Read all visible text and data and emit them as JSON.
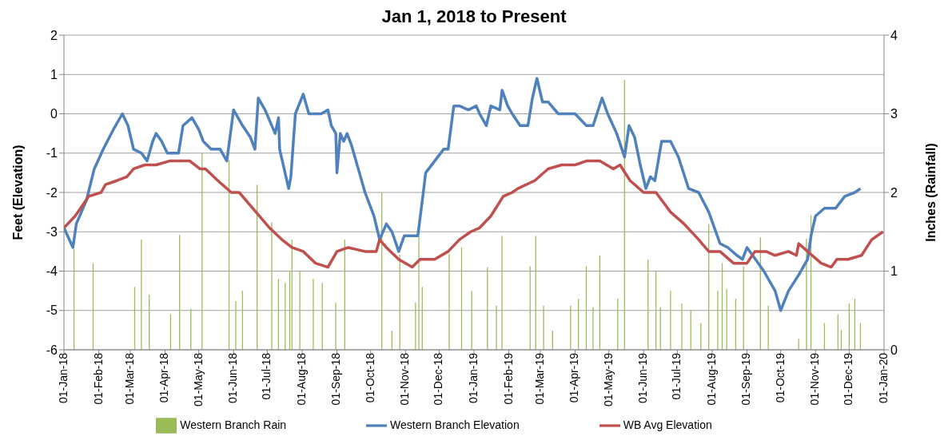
{
  "chart_data": {
    "type": "line",
    "title": "Jan 1, 2018 to Present",
    "ylabel": "Feet (Elevation)",
    "y2label": "Inches (Rainfall)",
    "xlim": [
      "2018-01-01",
      "2020-01-01"
    ],
    "xticks": [
      {
        "value": "2018-01-01",
        "label": "01-Jan-18"
      },
      {
        "value": "2018-02-01",
        "label": "01-Feb-18"
      },
      {
        "value": "2018-03-01",
        "label": "01-Mar-18"
      },
      {
        "value": "2018-04-01",
        "label": "01-Apr-18"
      },
      {
        "value": "2018-05-01",
        "label": "01-May-18"
      },
      {
        "value": "2018-06-01",
        "label": "01-Jun-18"
      },
      {
        "value": "2018-07-01",
        "label": "01-Jul-18"
      },
      {
        "value": "2018-08-01",
        "label": "01-Aug-18"
      },
      {
        "value": "2018-09-01",
        "label": "01-Sep-18"
      },
      {
        "value": "2018-10-01",
        "label": "01-Oct-18"
      },
      {
        "value": "2018-11-01",
        "label": "01-Nov-18"
      },
      {
        "value": "2018-12-01",
        "label": "01-Dec-18"
      },
      {
        "value": "2019-01-01",
        "label": "01-Jan-19"
      },
      {
        "value": "2019-02-01",
        "label": "01-Feb-19"
      },
      {
        "value": "2019-03-01",
        "label": "01-Mar-19"
      },
      {
        "value": "2019-04-01",
        "label": "01-Apr-19"
      },
      {
        "value": "2019-05-01",
        "label": "01-May-19"
      },
      {
        "value": "2019-06-01",
        "label": "01-Jun-19"
      },
      {
        "value": "2019-07-01",
        "label": "01-Jul-19"
      },
      {
        "value": "2019-08-01",
        "label": "01-Aug-19"
      },
      {
        "value": "2019-09-01",
        "label": "01-Sep-19"
      },
      {
        "value": "2019-10-01",
        "label": "01-Oct-19"
      },
      {
        "value": "2019-11-01",
        "label": "01-Nov-19"
      },
      {
        "value": "2019-12-01",
        "label": "01-Dec-19"
      },
      {
        "value": "2020-01-01",
        "label": "01-Jan-20"
      }
    ],
    "ylim": [
      -6,
      2
    ],
    "yticks": [
      -6,
      -5,
      -4,
      -3,
      -2,
      -1,
      0,
      1,
      2
    ],
    "y2lim": [
      0,
      4
    ],
    "y2ticks": [
      0,
      1,
      2,
      3,
      4
    ],
    "grid": "y",
    "legend": "bottom",
    "marker": "none",
    "series": [
      {
        "name": "Western Branch Rain",
        "type": "bar",
        "axis": "y2",
        "color": "#9bbb59",
        "x": [
          "2018-01-10",
          "2018-01-27",
          "2018-03-05",
          "2018-03-11",
          "2018-03-18",
          "2018-04-06",
          "2018-04-14",
          "2018-04-24",
          "2018-05-04",
          "2018-05-28",
          "2018-06-03",
          "2018-06-09",
          "2018-06-22",
          "2018-07-05",
          "2018-07-11",
          "2018-07-17",
          "2018-07-21",
          "2018-07-23",
          "2018-07-30",
          "2018-08-11",
          "2018-08-19",
          "2018-08-31",
          "2018-09-08",
          "2018-10-11",
          "2018-10-20",
          "2018-10-27",
          "2018-11-10",
          "2018-11-13",
          "2018-11-16",
          "2018-12-10",
          "2018-12-21",
          "2018-12-30",
          "2019-01-13",
          "2019-01-21",
          "2019-01-26",
          "2019-02-20",
          "2019-02-25",
          "2019-03-04",
          "2019-03-12",
          "2019-03-28",
          "2019-04-04",
          "2019-04-11",
          "2019-04-17",
          "2019-04-23",
          "2019-05-09",
          "2019-05-15",
          "2019-06-05",
          "2019-06-12",
          "2019-06-16",
          "2019-06-25",
          "2019-07-05",
          "2019-07-13",
          "2019-07-22",
          "2019-07-29",
          "2019-08-06",
          "2019-08-10",
          "2019-08-14",
          "2019-08-22",
          "2019-08-29",
          "2019-09-13",
          "2019-09-20",
          "2019-10-17",
          "2019-10-24",
          "2019-10-28",
          "2019-11-09",
          "2019-11-21",
          "2019-11-24",
          "2019-12-01",
          "2019-12-06",
          "2019-12-11"
        ],
        "values": [
          1.28,
          1.1,
          0.8,
          1.4,
          0.7,
          0.45,
          1.46,
          0.52,
          2.5,
          2.41,
          0.62,
          0.75,
          2.1,
          1.62,
          0.9,
          0.85,
          1.0,
          1.4,
          1.0,
          0.9,
          0.85,
          0.6,
          1.4,
          2.0,
          0.24,
          1.21,
          0.6,
          1.44,
          0.8,
          1.22,
          1.3,
          0.75,
          1.05,
          0.56,
          1.45,
          1.06,
          1.45,
          0.56,
          0.24,
          0.56,
          0.65,
          1.06,
          0.54,
          1.2,
          0.65,
          3.43,
          1.15,
          1.0,
          0.54,
          0.75,
          0.59,
          0.5,
          0.34,
          1.6,
          0.75,
          1.1,
          0.77,
          0.65,
          1.06,
          1.43,
          0.56,
          0.14,
          1.41,
          1.71,
          0.34,
          0.45,
          0.25,
          0.59,
          0.65,
          0.34
        ]
      },
      {
        "name": "Western Branch Elevation",
        "color": "#4f81bd",
        "x": [
          "2018-01-01",
          "2018-01-09",
          "2018-01-12",
          "2018-01-21",
          "2018-01-28",
          "2018-02-05",
          "2018-02-14",
          "2018-02-22",
          "2018-02-27",
          "2018-03-04",
          "2018-03-11",
          "2018-03-16",
          "2018-03-21",
          "2018-03-24",
          "2018-03-29",
          "2018-04-03",
          "2018-04-13",
          "2018-04-17",
          "2018-04-25",
          "2018-05-01",
          "2018-05-05",
          "2018-05-12",
          "2018-05-20",
          "2018-05-26",
          "2018-06-01",
          "2018-06-09",
          "2018-06-16",
          "2018-06-20",
          "2018-06-23",
          "2018-06-29",
          "2018-07-08",
          "2018-07-11",
          "2018-07-12",
          "2018-07-16",
          "2018-07-20",
          "2018-07-22",
          "2018-07-26",
          "2018-08-02",
          "2018-08-07",
          "2018-08-18",
          "2018-08-24",
          "2018-08-27",
          "2018-08-31",
          "2018-09-01",
          "2018-09-04",
          "2018-09-07",
          "2018-09-10",
          "2018-09-14",
          "2018-09-21",
          "2018-09-26",
          "2018-10-04",
          "2018-10-09",
          "2018-10-15",
          "2018-10-20",
          "2018-10-26",
          "2018-10-31",
          "2018-11-07",
          "2018-11-12",
          "2018-11-16",
          "2018-11-19",
          "2018-11-27",
          "2018-12-05",
          "2018-12-09",
          "2018-12-14",
          "2018-12-19",
          "2018-12-27",
          "2019-01-03",
          "2019-01-06",
          "2019-01-10",
          "2019-01-12",
          "2019-01-16",
          "2019-01-24",
          "2019-01-26",
          "2019-01-31",
          "2019-02-04",
          "2019-02-11",
          "2019-02-18",
          "2019-02-22",
          "2019-02-26",
          "2019-03-03",
          "2019-03-08",
          "2019-03-17",
          "2019-04-01",
          "2019-04-11",
          "2019-04-17",
          "2019-04-25",
          "2019-04-30",
          "2019-05-08",
          "2019-05-15",
          "2019-05-19",
          "2019-05-24",
          "2019-05-29",
          "2019-06-03",
          "2019-06-07",
          "2019-06-11",
          "2019-06-17",
          "2019-06-25",
          "2019-07-02",
          "2019-07-11",
          "2019-07-20",
          "2019-07-29",
          "2019-08-08",
          "2019-08-15",
          "2019-08-23",
          "2019-08-28",
          "2019-09-01",
          "2019-09-06",
          "2019-09-16",
          "2019-09-26",
          "2019-10-01",
          "2019-10-08",
          "2019-10-17",
          "2019-10-25",
          "2019-10-28",
          "2019-11-01",
          "2019-11-09",
          "2019-11-19",
          "2019-11-27",
          "2019-12-06",
          "2019-12-11"
        ],
        "values": [
          -2.9,
          -3.4,
          -2.8,
          -2.2,
          -1.4,
          -0.9,
          -0.4,
          0.0,
          -0.3,
          -0.9,
          -1.0,
          -1.2,
          -0.7,
          -0.5,
          -0.7,
          -1.0,
          -1.0,
          -0.3,
          -0.1,
          -0.4,
          -0.7,
          -0.9,
          -0.9,
          -1.2,
          0.1,
          -0.3,
          -0.6,
          -0.9,
          0.4,
          0.1,
          -0.5,
          -0.1,
          -0.9,
          -1.4,
          -1.9,
          -1.6,
          0.0,
          0.5,
          0.0,
          0.0,
          0.1,
          -0.3,
          -0.5,
          -1.5,
          -0.5,
          -0.7,
          -0.5,
          -0.8,
          -1.5,
          -2.0,
          -2.6,
          -3.2,
          -2.8,
          -3.0,
          -3.5,
          -3.1,
          -3.1,
          -3.1,
          -2.2,
          -1.5,
          -1.2,
          -0.9,
          -0.9,
          0.2,
          0.2,
          0.1,
          0.2,
          0.0,
          -0.2,
          -0.3,
          0.2,
          0.1,
          0.6,
          0.2,
          0.0,
          -0.3,
          -0.3,
          0.4,
          0.9,
          0.3,
          0.3,
          0.0,
          0.0,
          -0.3,
          -0.3,
          0.4,
          0.0,
          -0.5,
          -1.1,
          -0.3,
          -0.6,
          -1.3,
          -1.9,
          -1.6,
          -1.7,
          -0.7,
          -0.7,
          -1.1,
          -1.9,
          -2.0,
          -2.5,
          -3.3,
          -3.4,
          -3.6,
          -3.7,
          -3.4,
          -3.6,
          -4.0,
          -4.5,
          -5.0,
          -4.5,
          -4.1,
          -3.7,
          -3.1,
          -2.6,
          -2.4,
          -2.4,
          -2.1,
          -2.0,
          -1.9
        ]
      },
      {
        "name": "WB Avg Elevation",
        "color": "#c0504d",
        "x": [
          "2018-01-01",
          "2018-01-11",
          "2018-01-23",
          "2018-02-03",
          "2018-02-07",
          "2018-02-17",
          "2018-02-26",
          "2018-03-04",
          "2018-03-14",
          "2018-03-24",
          "2018-04-05",
          "2018-04-15",
          "2018-04-23",
          "2018-05-02",
          "2018-05-07",
          "2018-05-18",
          "2018-05-30",
          "2018-06-06",
          "2018-06-21",
          "2018-07-03",
          "2018-07-14",
          "2018-07-23",
          "2018-08-02",
          "2018-08-13",
          "2018-08-24",
          "2018-09-01",
          "2018-09-11",
          "2018-09-26",
          "2018-10-06",
          "2018-10-09",
          "2018-10-15",
          "2018-10-26",
          "2018-11-07",
          "2018-11-14",
          "2018-11-27",
          "2018-12-09",
          "2018-12-19",
          "2018-12-29",
          "2019-01-06",
          "2019-01-16",
          "2019-01-27",
          "2019-02-04",
          "2019-02-09",
          "2019-02-24",
          "2019-03-08",
          "2019-03-20",
          "2019-04-01",
          "2019-04-11",
          "2019-04-23",
          "2019-05-05",
          "2019-05-11",
          "2019-05-20",
          "2019-06-01",
          "2019-06-12",
          "2019-06-25",
          "2019-07-07",
          "2019-07-20",
          "2019-07-29",
          "2019-08-08",
          "2019-08-20",
          "2019-09-01",
          "2019-09-08",
          "2019-09-18",
          "2019-09-26",
          "2019-10-08",
          "2019-10-15",
          "2019-10-17",
          "2019-10-25",
          "2019-11-06",
          "2019-11-15",
          "2019-11-20",
          "2019-11-30",
          "2019-12-12",
          "2019-12-21",
          "2019-12-31"
        ],
        "values": [
          -2.9,
          -2.6,
          -2.1,
          -2.0,
          -1.8,
          -1.7,
          -1.6,
          -1.4,
          -1.3,
          -1.3,
          -1.2,
          -1.2,
          -1.2,
          -1.4,
          -1.4,
          -1.7,
          -2.0,
          -2.0,
          -2.5,
          -2.9,
          -3.2,
          -3.4,
          -3.5,
          -3.8,
          -3.9,
          -3.5,
          -3.4,
          -3.5,
          -3.5,
          -3.2,
          -3.4,
          -3.7,
          -3.9,
          -3.7,
          -3.7,
          -3.5,
          -3.2,
          -3.0,
          -2.9,
          -2.6,
          -2.1,
          -2.0,
          -1.9,
          -1.7,
          -1.4,
          -1.3,
          -1.3,
          -1.2,
          -1.2,
          -1.4,
          -1.3,
          -1.7,
          -2.0,
          -2.0,
          -2.5,
          -2.8,
          -3.2,
          -3.5,
          -3.5,
          -3.8,
          -3.8,
          -3.5,
          -3.5,
          -3.6,
          -3.5,
          -3.6,
          -3.3,
          -3.5,
          -3.8,
          -3.9,
          -3.7,
          -3.7,
          -3.6,
          -3.2,
          -3.0
        ]
      }
    ]
  }
}
